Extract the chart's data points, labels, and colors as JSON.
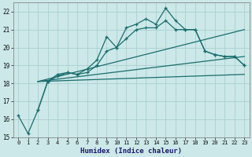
{
  "xlabel": "Humidex (Indice chaleur)",
  "background_color": "#cce8e8",
  "grid_color": "#aacfcf",
  "line_color": "#1a6e6e",
  "ylim": [
    15,
    22.5
  ],
  "xlim": [
    -0.5,
    23.5
  ],
  "yticks": [
    15,
    16,
    17,
    18,
    19,
    20,
    21,
    22
  ],
  "xticks": [
    0,
    1,
    2,
    3,
    4,
    5,
    6,
    7,
    8,
    9,
    10,
    11,
    12,
    13,
    14,
    15,
    16,
    17,
    18,
    19,
    20,
    21,
    22,
    23
  ],
  "series1_x": [
    0,
    1,
    2,
    3,
    4,
    5,
    6,
    7,
    8,
    9,
    10,
    11,
    12,
    13,
    14,
    15,
    16,
    17,
    18,
    19,
    20,
    21,
    22,
    23
  ],
  "series1_y": [
    16.2,
    15.2,
    16.5,
    18.1,
    18.5,
    18.6,
    18.5,
    18.8,
    19.3,
    20.6,
    20.0,
    21.1,
    21.3,
    21.6,
    21.3,
    22.2,
    21.5,
    21.0,
    21.0,
    19.8,
    19.6,
    19.5,
    19.5,
    19.0
  ],
  "series2_x": [
    2,
    3,
    4,
    5,
    6,
    7,
    8,
    9,
    10,
    11,
    12,
    13,
    14,
    15,
    16,
    17,
    18,
    19,
    20,
    21,
    22,
    23
  ],
  "series2_y": [
    16.5,
    18.1,
    18.4,
    18.6,
    18.5,
    18.6,
    19.0,
    19.8,
    20.0,
    20.5,
    21.0,
    21.1,
    21.1,
    21.5,
    21.0,
    21.0,
    21.0,
    19.8,
    19.6,
    19.5,
    19.5,
    19.0
  ],
  "trend1_x": [
    2,
    23
  ],
  "trend1_y": [
    18.1,
    21.0
  ],
  "trend2_x": [
    2,
    23
  ],
  "trend2_y": [
    18.1,
    19.5
  ],
  "trend3_x": [
    2,
    23
  ],
  "trend3_y": [
    18.1,
    18.5
  ]
}
